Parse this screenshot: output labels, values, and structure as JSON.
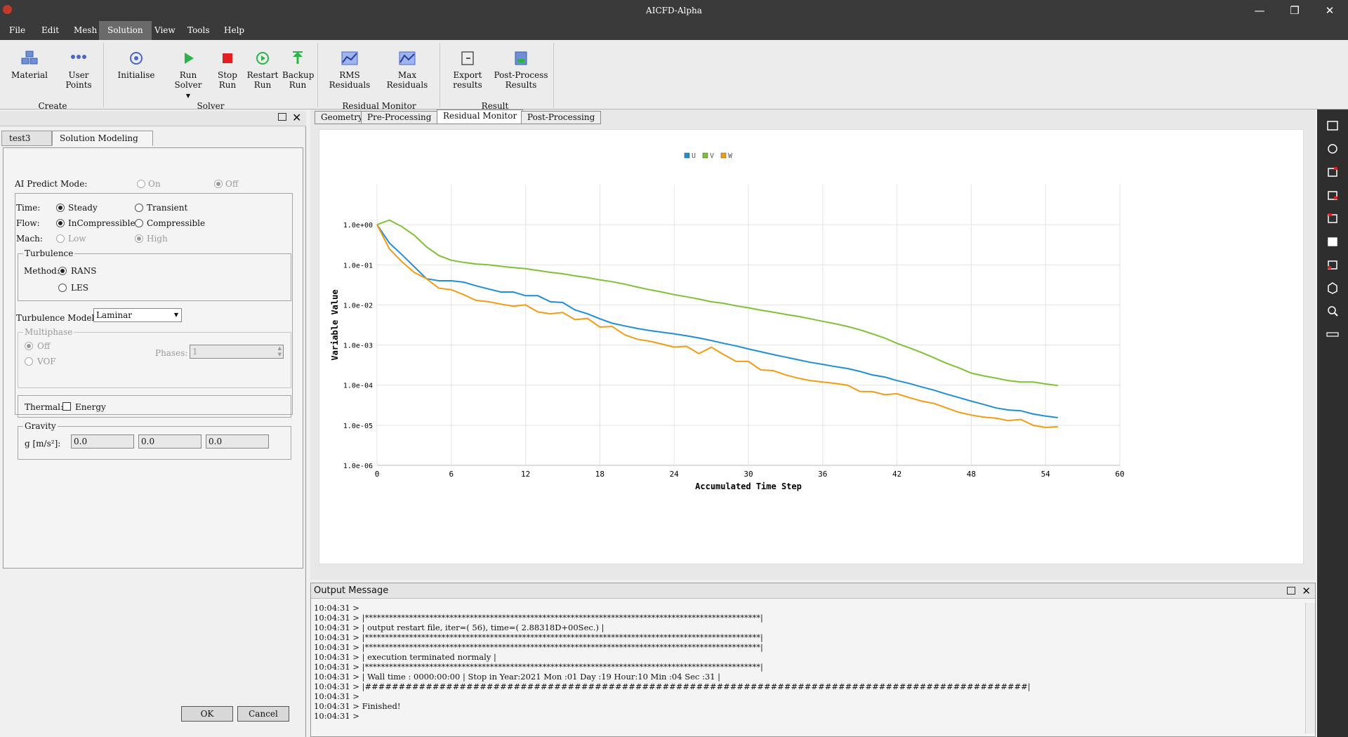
{
  "window": {
    "title": "AICFD-Alpha",
    "minimize": "—",
    "restore": "❐",
    "close": "✕"
  },
  "menu": [
    "File",
    "Edit",
    "Mesh",
    "Solution",
    "View",
    "Tools",
    "Help"
  ],
  "ribbon": {
    "buttons": {
      "material": "Material",
      "user_points_1": "User",
      "user_points_2": "Points",
      "initialise": "Initialise",
      "run_solver": "Run Solver",
      "stop_run_1": "Stop",
      "stop_run_2": "Run",
      "restart_run_1": "Restart",
      "restart_run_2": "Run",
      "backup_run_1": "Backup",
      "backup_run_2": "Run",
      "rms_residuals": "RMS Residuals",
      "max_residuals": "Max Residuals",
      "export_results_1": "Export",
      "export_results_2": "results",
      "post_process_1": "Post-Process",
      "post_process_2": "Results"
    },
    "groups": {
      "create": "Create",
      "solver": "Solver",
      "residual_monitor": "Residual Monitor",
      "result": "Result"
    }
  },
  "left_panel": {
    "tabs": {
      "test": "test3",
      "solution_modeling": "Solution Modeling"
    },
    "ai_predict_label": "AI Predict Mode:",
    "ai_on": "On",
    "ai_off": "Off",
    "time_label": "Time:",
    "time_steady": "Steady",
    "time_transient": "Transient",
    "flow_label": "Flow:",
    "flow_incompressible": "InCompressible",
    "flow_compressible": "Compressible",
    "mach_label": "Mach:",
    "mach_low": "Low",
    "mach_high": "High",
    "turbulence_title": "Turbulence",
    "method_label": "Method:",
    "method_rans": "RANS",
    "method_les": "LES",
    "turb_model_label": "Turbulence Model:",
    "turb_model_value": "Laminar",
    "multiphase_title": "Multiphase",
    "mp_off": "Off",
    "mp_vof": "VOF",
    "phases_label": "Phases:",
    "phases_value": "1",
    "thermal_label": "Thermal:",
    "energy_label": "Energy",
    "gravity_title": "Gravity",
    "g_label": "g [m/s²]:",
    "g_values": [
      "0.0",
      "0.0",
      "0.0"
    ],
    "ok": "OK",
    "cancel": "Cancel"
  },
  "view_tabs": [
    "Geometry",
    "Pre-Processing",
    "Residual Monitor",
    "Post-Processing"
  ],
  "chart_data": {
    "type": "line",
    "xlabel": "Accumulated Time Step",
    "ylabel": "Variable Value",
    "yscale": "log",
    "xlim": [
      0,
      60
    ],
    "ylim": [
      1e-06,
      10
    ],
    "x_ticks": [
      0,
      6,
      12,
      18,
      24,
      30,
      36,
      42,
      48,
      54,
      60
    ],
    "y_ticks": [
      "1.0e+00",
      "1.0e-01",
      "1.0e-02",
      "1.0e-03",
      "1.0e-04",
      "1.0e-05",
      "1.0e-06"
    ],
    "grid": true,
    "legend": "top-center",
    "x": [
      0,
      1,
      2,
      3,
      4,
      5,
      6,
      7,
      8,
      9,
      10,
      11,
      12,
      13,
      14,
      15,
      16,
      17,
      18,
      19,
      20,
      21,
      22,
      23,
      24,
      25,
      26,
      27,
      28,
      29,
      30,
      31,
      32,
      33,
      34,
      35,
      36,
      37,
      38,
      39,
      40,
      41,
      42,
      43,
      44,
      45,
      46,
      47,
      48,
      49,
      50,
      51,
      52,
      53,
      54,
      55
    ],
    "series": [
      {
        "name": "U",
        "color": "#1f8ed9",
        "values": [
          1.0,
          0.35,
          0.18,
          0.09,
          0.045,
          0.04,
          0.04,
          0.037,
          0.03,
          0.025,
          0.021,
          0.021,
          0.017,
          0.017,
          0.012,
          0.0115,
          0.0075,
          0.006,
          0.0045,
          0.0035,
          0.003,
          0.0026,
          0.0023,
          0.0021,
          0.0019,
          0.0017,
          0.0015,
          0.0013,
          0.0011,
          0.00095,
          0.0008,
          0.00068,
          0.00058,
          0.0005,
          0.00043,
          0.00037,
          0.00033,
          0.00029,
          0.00026,
          0.00022,
          0.00018,
          0.00016,
          0.00013,
          0.00011,
          9e-05,
          7.5e-05,
          6e-05,
          4.9e-05,
          4e-05,
          3.3e-05,
          2.7e-05,
          2.4e-05,
          2.3e-05,
          1.9e-05,
          1.7e-05,
          1.55e-05
        ]
      },
      {
        "name": "V",
        "color": "#7cc233",
        "values": [
          1.0,
          1.3,
          0.9,
          0.55,
          0.28,
          0.17,
          0.13,
          0.115,
          0.105,
          0.1,
          0.092,
          0.085,
          0.08,
          0.072,
          0.065,
          0.06,
          0.053,
          0.048,
          0.042,
          0.038,
          0.033,
          0.028,
          0.024,
          0.021,
          0.018,
          0.016,
          0.014,
          0.012,
          0.011,
          0.0095,
          0.0085,
          0.0074,
          0.0066,
          0.0058,
          0.0052,
          0.0045,
          0.0039,
          0.0034,
          0.0029,
          0.0024,
          0.0019,
          0.0015,
          0.0011,
          0.00085,
          0.00065,
          0.00048,
          0.00035,
          0.00027,
          0.0002,
          0.00017,
          0.00015,
          0.00013,
          0.00012,
          0.00012,
          0.000107,
          9.8e-05
        ]
      },
      {
        "name": "W",
        "color": "#f39c12",
        "values": [
          1.0,
          0.25,
          0.12,
          0.065,
          0.045,
          0.026,
          0.024,
          0.018,
          0.013,
          0.012,
          0.0105,
          0.0093,
          0.01,
          0.0067,
          0.006,
          0.0065,
          0.0043,
          0.0046,
          0.0028,
          0.0029,
          0.0018,
          0.0014,
          0.00125,
          0.00106,
          0.00089,
          0.00093,
          0.00061,
          0.00088,
          0.00058,
          0.00039,
          0.00039,
          0.00024,
          0.00023,
          0.00018,
          0.00015,
          0.00013,
          0.00012,
          0.00011,
          0.0001,
          7e-05,
          6.9e-05,
          5.8e-05,
          6.1e-05,
          4.9e-05,
          4e-05,
          3.5e-05,
          2.7e-05,
          2.1e-05,
          1.8e-05,
          1.6e-05,
          1.5e-05,
          1.3e-05,
          1.4e-05,
          1e-05,
          8.8e-06,
          9.2e-06
        ]
      }
    ]
  },
  "output": {
    "title": "Output Message",
    "lines": [
      "10:04:31 >",
      "10:04:31 > |**************************************************************************************************|",
      "10:04:31 > | output restart file, iter=( 56), time=( 2.88318D+00Sec.) |",
      "10:04:31 > |**************************************************************************************************|",
      "10:04:31 > |**************************************************************************************************|",
      "10:04:31 > | execution terminated normaly |",
      "10:04:31 > |**************************************************************************************************|",
      "10:04:31 > | Wall time : 0000:00:00 | Stop in Year:2021 Mon :01 Day :19 Hour:10 Min :04 Sec :31 |",
      "10:04:31 > |##################################################################################################|",
      "10:04:31 >",
      "10:04:31 > Finished!",
      "10:04:31 >"
    ]
  }
}
